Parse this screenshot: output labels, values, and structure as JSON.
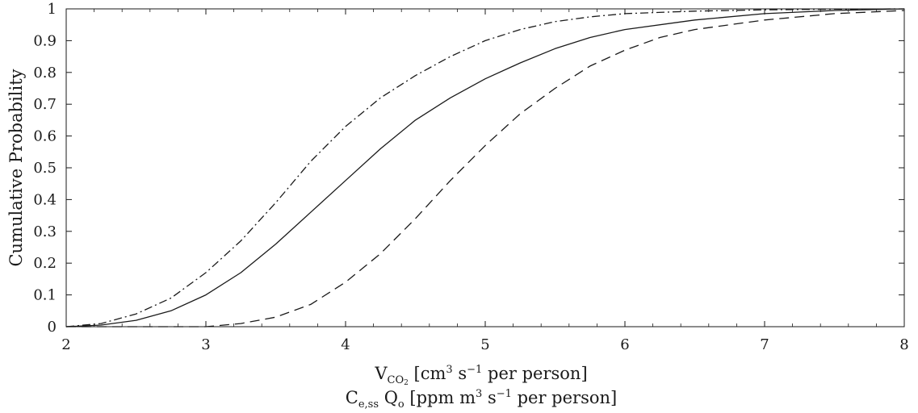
{
  "chart_data": {
    "type": "line",
    "title": "",
    "xlabel_line1": {
      "var": "V",
      "var_sub": "CO",
      "var_sub2": "2",
      "unit_a": " [cm",
      "unit_a_sup": "3",
      "unit_b": " s",
      "unit_b_sup": "−1",
      "unit_c": " per person]"
    },
    "xlabel_line2": {
      "var": "C",
      "var_sub": "e,ss",
      "var2": " Q",
      "var2_sub": "o",
      "unit_a": " [ppm m",
      "unit_a_sup": "3",
      "unit_b": " s",
      "unit_b_sup": "−1",
      "unit_c": " per person]"
    },
    "ylabel": "Cumulative Probability",
    "xlim": [
      2,
      8
    ],
    "ylim": [
      0,
      1
    ],
    "x_ticks": [
      "2",
      "3",
      "4",
      "5",
      "6",
      "7",
      "8"
    ],
    "y_ticks": [
      "0",
      "0.1",
      "0.2",
      "0.3",
      "0.4",
      "0.5",
      "0.6",
      "0.7",
      "0.8",
      "0.9",
      "1"
    ],
    "grid": false,
    "series": [
      {
        "style": "dash-dot",
        "color": "#1a1a1a",
        "x": [
          2.0,
          2.25,
          2.5,
          2.75,
          3.0,
          3.25,
          3.5,
          3.75,
          4.0,
          4.25,
          4.5,
          4.75,
          5.0,
          5.25,
          5.5,
          5.75,
          6.0,
          6.5,
          7.0,
          7.5,
          8.0
        ],
        "y": [
          0.0,
          0.01,
          0.04,
          0.09,
          0.17,
          0.27,
          0.39,
          0.52,
          0.63,
          0.72,
          0.79,
          0.85,
          0.9,
          0.935,
          0.96,
          0.975,
          0.985,
          0.993,
          0.997,
          0.999,
          1.0
        ]
      },
      {
        "style": "solid",
        "color": "#1a1a1a",
        "x": [
          2.0,
          2.25,
          2.5,
          2.75,
          3.0,
          3.25,
          3.5,
          3.75,
          4.0,
          4.25,
          4.5,
          4.75,
          5.0,
          5.25,
          5.5,
          5.75,
          6.0,
          6.5,
          7.0,
          7.5,
          8.0
        ],
        "y": [
          0.0,
          0.005,
          0.02,
          0.05,
          0.1,
          0.17,
          0.26,
          0.36,
          0.46,
          0.56,
          0.65,
          0.72,
          0.78,
          0.83,
          0.875,
          0.91,
          0.935,
          0.965,
          0.985,
          0.995,
          1.0
        ]
      },
      {
        "style": "dashed",
        "color": "#1a1a1a",
        "x": [
          2.0,
          2.5,
          3.0,
          3.25,
          3.5,
          3.75,
          4.0,
          4.25,
          4.5,
          4.75,
          5.0,
          5.25,
          5.5,
          5.75,
          6.0,
          6.25,
          6.5,
          7.0,
          7.5,
          8.0
        ],
        "y": [
          0.0,
          0.0,
          0.0,
          0.01,
          0.03,
          0.07,
          0.14,
          0.23,
          0.34,
          0.46,
          0.57,
          0.67,
          0.75,
          0.82,
          0.87,
          0.91,
          0.935,
          0.965,
          0.985,
          0.995
        ]
      }
    ]
  }
}
